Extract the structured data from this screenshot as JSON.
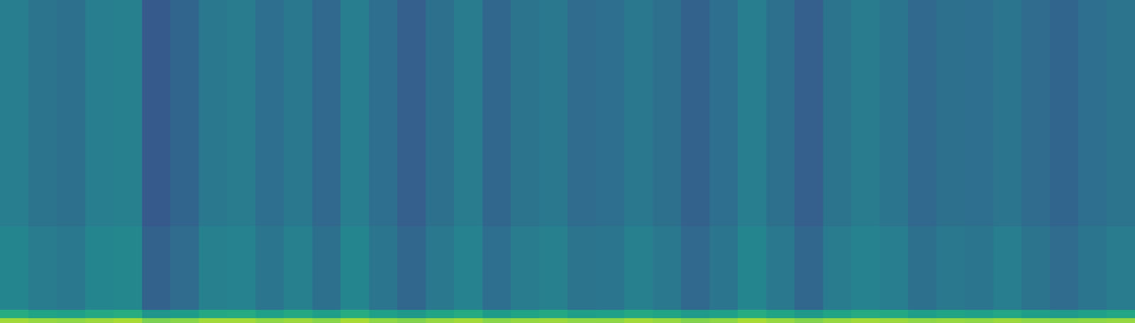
{
  "chart_data": {
    "type": "heatmap",
    "color": "Viridis",
    "grid": false,
    "tick_labels": false,
    "xlim": [
      0,
      40
    ],
    "ylim": [
      0,
      100
    ],
    "zlim": [
      0,
      1
    ],
    "x": [
      0,
      1,
      2,
      3,
      4,
      5,
      6,
      7,
      8,
      9,
      10,
      11,
      12,
      13,
      14,
      15,
      16,
      17,
      18,
      19,
      20,
      21,
      22,
      23,
      24,
      25,
      26,
      27,
      28,
      29,
      30,
      31,
      32,
      33,
      34,
      35,
      36,
      37,
      38,
      39,
      40
    ],
    "y": [
      0,
      1.5,
      4,
      30,
      100
    ],
    "cells": [
      [
        0.86,
        0.84,
        0.83,
        0.85,
        0.87,
        0.8,
        0.82,
        0.86,
        0.86,
        0.83,
        0.85,
        0.82,
        0.87,
        0.83,
        0.81,
        0.84,
        0.86,
        0.82,
        0.84,
        0.85,
        0.83,
        0.83,
        0.86,
        0.84,
        0.81,
        0.83,
        0.87,
        0.84,
        0.81,
        0.84,
        0.86,
        0.85,
        0.83,
        0.84,
        0.83,
        0.85,
        0.83,
        0.82,
        0.83,
        0.84
      ],
      [
        0.62,
        0.58,
        0.57,
        0.6,
        0.62,
        0.52,
        0.55,
        0.6,
        0.61,
        0.57,
        0.6,
        0.56,
        0.62,
        0.57,
        0.53,
        0.58,
        0.61,
        0.55,
        0.58,
        0.6,
        0.56,
        0.57,
        0.6,
        0.58,
        0.54,
        0.57,
        0.62,
        0.58,
        0.53,
        0.58,
        0.61,
        0.6,
        0.56,
        0.58,
        0.57,
        0.59,
        0.56,
        0.54,
        0.57,
        0.59
      ],
      [
        0.45,
        0.41,
        0.4,
        0.45,
        0.46,
        0.31,
        0.35,
        0.43,
        0.44,
        0.39,
        0.43,
        0.37,
        0.45,
        0.39,
        0.33,
        0.4,
        0.44,
        0.36,
        0.41,
        0.43,
        0.38,
        0.39,
        0.43,
        0.4,
        0.34,
        0.39,
        0.45,
        0.4,
        0.33,
        0.41,
        0.44,
        0.42,
        0.37,
        0.4,
        0.39,
        0.42,
        0.38,
        0.35,
        0.39,
        0.41
      ],
      [
        0.42,
        0.38,
        0.37,
        0.42,
        0.43,
        0.28,
        0.32,
        0.4,
        0.41,
        0.36,
        0.4,
        0.34,
        0.42,
        0.36,
        0.3,
        0.37,
        0.41,
        0.33,
        0.38,
        0.4,
        0.35,
        0.36,
        0.4,
        0.37,
        0.31,
        0.36,
        0.42,
        0.37,
        0.3,
        0.38,
        0.41,
        0.39,
        0.34,
        0.37,
        0.36,
        0.39,
        0.35,
        0.32,
        0.36,
        0.38
      ]
    ]
  }
}
